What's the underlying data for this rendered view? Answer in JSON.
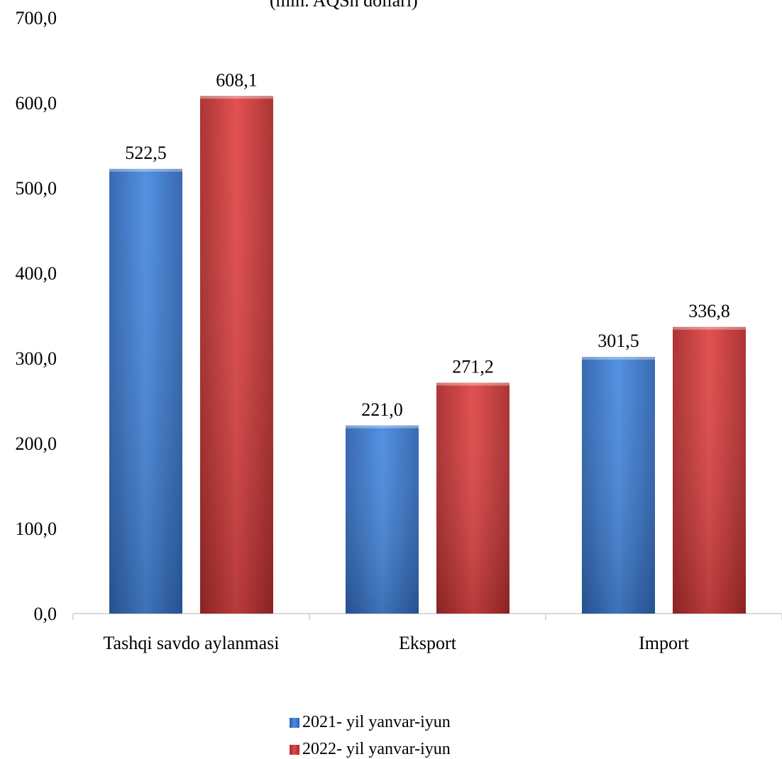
{
  "chart_data": {
    "type": "bar",
    "title": "(mln. AQSh dollari)",
    "categories": [
      "Tashqi savdo aylanmasi",
      "Eksport",
      "Import"
    ],
    "series": [
      {
        "name": "2021- yil yanvar-iyun",
        "color": "#3a7bd5",
        "values": [
          522.5,
          221.0,
          301.5
        ],
        "labels": [
          "522,5",
          "221,0",
          "301,5"
        ]
      },
      {
        "name": "2022- yil yanvar-iyun",
        "color": "#d23c3c",
        "values": [
          608.1,
          271.2,
          336.8
        ],
        "labels": [
          "608,1",
          "271,2",
          "336,8"
        ]
      }
    ],
    "ylim": [
      0,
      700
    ],
    "yticks": [
      0,
      100,
      200,
      300,
      400,
      500,
      600,
      700
    ],
    "ytick_labels": [
      "0,0",
      "100,0",
      "200,0",
      "300,0",
      "400,0",
      "500,0",
      "600,0",
      "700,0"
    ],
    "xlabel": "",
    "ylabel": "",
    "grid": false,
    "legend_position": "bottom"
  }
}
